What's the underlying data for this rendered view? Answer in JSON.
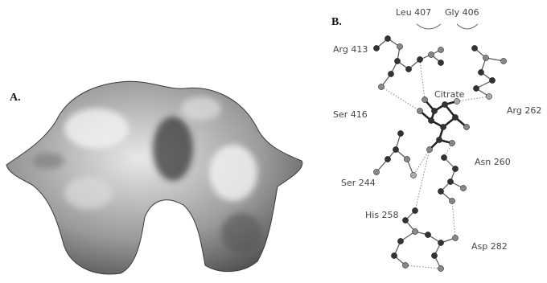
{
  "panels": [
    {
      "label": "A."
    },
    {
      "label": "B.",
      "residues": [
        "Leu 407",
        "Gly 406",
        "Arg 413",
        "Citrate",
        "Ser 416",
        "Arg 262",
        "Ser 244",
        "Asn 260",
        "His 258",
        "Asp 282"
      ]
    }
  ]
}
